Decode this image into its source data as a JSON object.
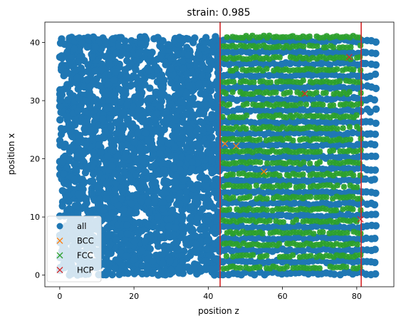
{
  "chart_data": {
    "type": "scatter",
    "title": "strain: 0.985",
    "xlabel": "position z",
    "ylabel": "position x",
    "xlim": [
      -4,
      90
    ],
    "ylim": [
      -2,
      43.5
    ],
    "xticks": [
      0,
      20,
      40,
      60,
      80
    ],
    "yticks": [
      0,
      10,
      20,
      30,
      40
    ],
    "vlines": [
      {
        "x": 43.2,
        "color": "#d62728"
      },
      {
        "x": 81.2,
        "color": "#d62728"
      }
    ],
    "legend": {
      "placement": "lower-left",
      "entries": [
        {
          "label": "all",
          "marker": "circle",
          "color": "#1f77b4"
        },
        {
          "label": "BCC",
          "marker": "x",
          "color": "#ff7f0e"
        },
        {
          "label": "FCC",
          "marker": "x",
          "color": "#2ca02c"
        },
        {
          "label": "HCP",
          "marker": "x",
          "color": "#d62728"
        }
      ]
    },
    "series": [
      {
        "name": "all",
        "marker": "circle",
        "color": "#1f77b4",
        "disordered_region": {
          "z_range": [
            0,
            43
          ],
          "x_range": [
            0,
            41
          ]
        },
        "ordered_region": {
          "z_range": [
            43,
            85.5
          ],
          "rows_x": [
            0.3,
            2.3,
            4.3,
            6.3,
            8.3,
            10.3,
            12.3,
            14.3,
            16.3,
            18.3,
            20.3,
            22.3,
            24.3,
            26.3,
            28.3,
            30.3,
            32.3,
            34.3,
            36.3,
            38.3,
            40.3
          ],
          "row_spacing_z": 1.2
        }
      },
      {
        "name": "FCC",
        "marker": "x",
        "color": "#2ca02c",
        "region": {
          "z_range": [
            44,
            81
          ],
          "rows_x": [
            1.3,
            3.3,
            5.3,
            7.3,
            9.3,
            11.3,
            13.3,
            15.3,
            17.3,
            19.3,
            21.3,
            23.3,
            25.3,
            27.3,
            29.3,
            31.3,
            33.3,
            35.3,
            37.3,
            39.3,
            41.0
          ],
          "spacing_z": 0.9
        }
      },
      {
        "name": "BCC",
        "marker": "x",
        "color": "#ff7f0e",
        "points": [
          [
            47.5,
            22.2
          ],
          [
            44.5,
            22.6
          ],
          [
            55.0,
            17.8
          ]
        ]
      },
      {
        "name": "HCP",
        "marker": "x",
        "color": "#d62728",
        "points": [
          [
            78.0,
            37.5
          ],
          [
            81.0,
            9.6
          ],
          [
            66.0,
            31.2
          ]
        ]
      }
    ]
  }
}
